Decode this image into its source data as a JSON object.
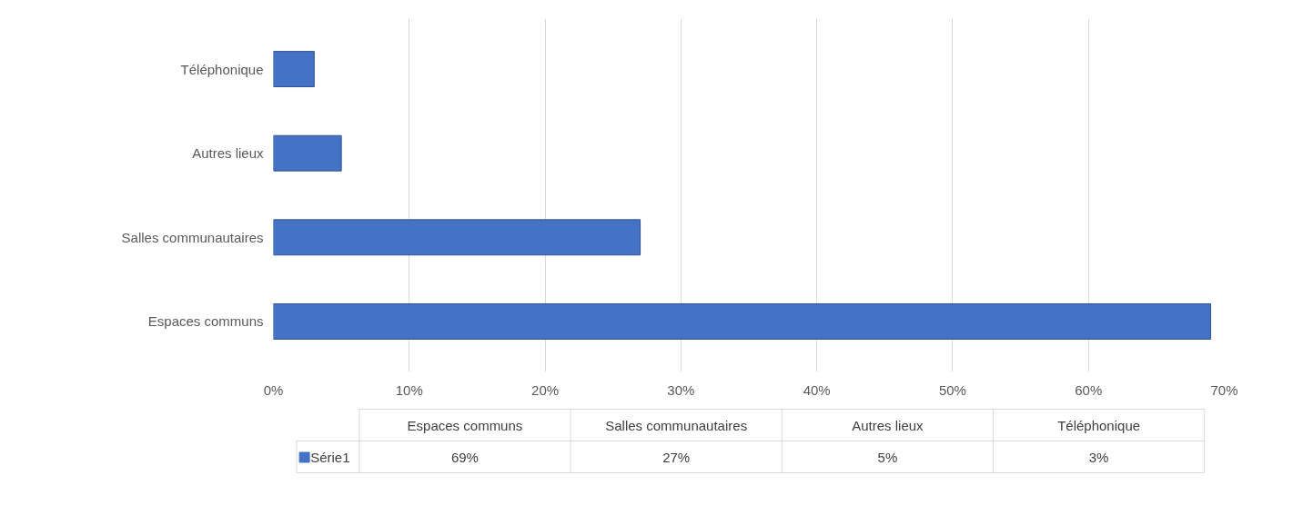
{
  "chart_data": {
    "type": "bar",
    "orientation": "horizontal",
    "categories": [
      "Téléphonique",
      "Autres lieux",
      "Salles communautaires",
      "Espaces communs"
    ],
    "series": [
      {
        "name": "Série1",
        "color": "#4472c4",
        "values": [
          3,
          5,
          27,
          69
        ]
      }
    ],
    "value_labels": [
      "3%",
      "5%",
      "27%",
      "69%"
    ],
    "xlim": [
      0,
      70
    ],
    "xticks": [
      {
        "value": 0,
        "label": "0%"
      },
      {
        "value": 10,
        "label": "10%"
      },
      {
        "value": 20,
        "label": "20%"
      },
      {
        "value": 30,
        "label": "30%"
      },
      {
        "value": 40,
        "label": "40%"
      },
      {
        "value": 50,
        "label": "50%"
      },
      {
        "value": 60,
        "label": "60%"
      },
      {
        "value": 70,
        "label": "70%"
      }
    ],
    "grid": "x",
    "legend": "bottom"
  }
}
